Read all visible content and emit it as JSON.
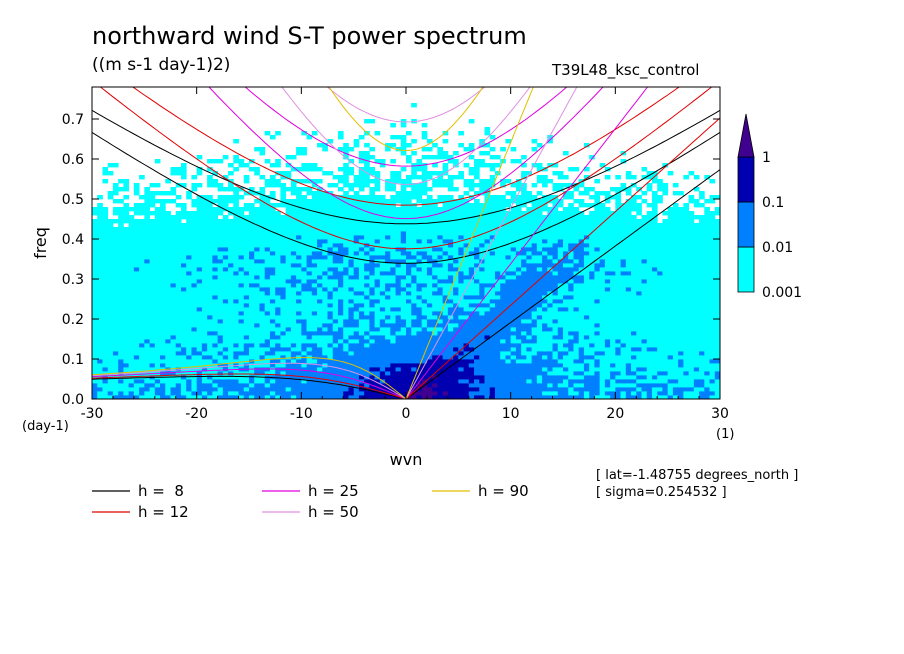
{
  "chart_data": {
    "type": "heatmap",
    "title": "northward wind S-T power spectrum",
    "subtitle": "((m s-1 day-1)2)",
    "experiment": "T39L48_ksc_control",
    "xlabel": "wvn",
    "ylabel": "freq",
    "x_unit_label": "(1)",
    "y_unit_label": "(day-1)",
    "xlim": [
      -30,
      30
    ],
    "ylim": [
      0,
      0.78
    ],
    "x_ticks": [
      -30,
      -20,
      -10,
      0,
      10,
      20,
      30
    ],
    "y_ticks": [
      0.0,
      0.1,
      0.2,
      0.3,
      0.4,
      0.5,
      0.6,
      0.7
    ],
    "x_tick_labels": [
      "-30",
      "-20",
      "-10",
      "0",
      "10",
      "20",
      "30"
    ],
    "y_tick_labels": [
      "0.0",
      "0.1",
      "0.2",
      "0.3",
      "0.4",
      "0.5",
      "0.6",
      "0.7"
    ],
    "colorbar": {
      "levels": [
        0.001,
        0.01,
        0.1,
        1
      ],
      "labels": [
        "0.001",
        "0.01",
        "0.1",
        "1"
      ],
      "colors": [
        "#00ffff",
        "#0080ff",
        "#0000b0",
        "#400090"
      ]
    },
    "dispersion_curves": [
      {
        "label": "h =  8",
        "h": 8,
        "color": "#000000"
      },
      {
        "label": "h = 12",
        "h": 12,
        "color": "#e00000"
      },
      {
        "label": "h = 25",
        "h": 25,
        "color": "#e000e0"
      },
      {
        "label": "h = 50",
        "h": 50,
        "color": "#e090e0"
      },
      {
        "label": "h = 90",
        "h": 90,
        "color": "#e0c000"
      }
    ],
    "annotations": [
      "[ lat=-1.48755 degrees_north ]",
      "[ sigma=0.254532 ]"
    ]
  }
}
